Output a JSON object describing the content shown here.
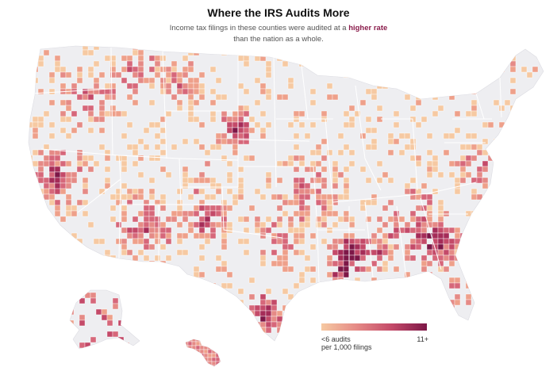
{
  "header": {
    "title": "Where the IRS Audits More",
    "subtitle_before": "Income tax filings in these counties were audited at a ",
    "subtitle_highlight": "higher rate",
    "subtitle_after": "than the nation as a whole."
  },
  "legend": {
    "low_label_line1": "<6 audits",
    "low_label_line2": "per 1,000 filings",
    "high_label": "11+"
  },
  "colors": {
    "base": "#eeeef1",
    "state_border": "#ffffff",
    "ramp": [
      "#f6c9a2",
      "#eea08a",
      "#e58a86",
      "#d6677a",
      "#c44a69",
      "#a52c58",
      "#7d1747"
    ],
    "highlight_text": "#8a1c4b"
  },
  "map": {
    "region": "United States counties",
    "hotspots": [
      {
        "name": "Mississippi Delta",
        "level": 6
      },
      {
        "name": "South Carolina / Georgia",
        "level": 5
      },
      {
        "name": "South Texas border",
        "level": 5
      },
      {
        "name": "South Dakota",
        "level": 5
      },
      {
        "name": "Central California",
        "level": 4
      },
      {
        "name": "Arizona / New Mexico",
        "level": 4
      },
      {
        "name": "Oklahoma",
        "level": 4
      },
      {
        "name": "Montana",
        "level": 3
      },
      {
        "name": "Florida",
        "level": 3
      },
      {
        "name": "Northern Maine",
        "level": 2
      }
    ]
  }
}
